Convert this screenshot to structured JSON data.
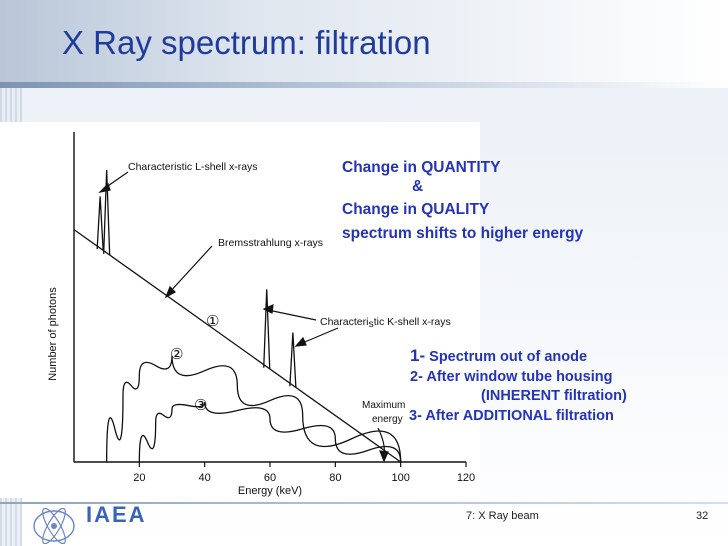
{
  "slide": {
    "title": "X Ray spectrum: filtration",
    "footer_center": "7: X Ray beam",
    "page_number": "32",
    "logo_text": "IAEA"
  },
  "annotations": {
    "quantity": "Change in QUANTITY",
    "ampersand": "&",
    "quality": "Change in QUALITY",
    "shift": "spectrum shifts to higher energy",
    "item1_num": "1-",
    "item1": " Spectrum out of anode",
    "item2": "2- After window tube housing",
    "item2b": "(INHERENT filtration)",
    "item3": "3- After ADDITIONAL filtration"
  },
  "colors": {
    "title": "#1f3c9a",
    "annotation": "#2433b8",
    "logo": "#3b64b8"
  },
  "chart_data": {
    "type": "line",
    "title": "",
    "xlabel": "Energy (keV)",
    "ylabel": "Number of photons",
    "xlim": [
      0,
      120
    ],
    "ylim": [
      0,
      100
    ],
    "xticks": [
      20,
      40,
      60,
      80,
      100,
      120
    ],
    "grid": false,
    "series": [
      {
        "name": "①",
        "x": [
          0,
          100
        ],
        "y": [
          70,
          0
        ]
      },
      {
        "name": "②",
        "x": [
          10,
          15,
          20,
          30,
          50,
          70,
          100
        ],
        "y": [
          0,
          20,
          26,
          32,
          23,
          14,
          0
        ]
      },
      {
        "name": "③",
        "x": [
          20,
          25,
          30,
          40,
          60,
          80,
          100
        ],
        "y": [
          0,
          12,
          16,
          18,
          13,
          7,
          0
        ]
      }
    ],
    "peaks": [
      {
        "label": "L-shell",
        "x": 8,
        "height": 80
      },
      {
        "label": "L-shell",
        "x": 10,
        "height": 88
      },
      {
        "label": "K-shell",
        "x": 59,
        "height": 52
      },
      {
        "label": "K-shell",
        "x": 67,
        "height": 39
      }
    ],
    "annotations": {
      "l_shell": "Characteristic L-shell x-rays",
      "brems": "Bremsstrahlung x-rays",
      "k_shell_a": "Characteri",
      "k_shell_s": "s",
      "k_shell_b": "tic K-shell x-rays",
      "max_energy_1": "Maximum",
      "max_energy_2": "energy"
    }
  }
}
